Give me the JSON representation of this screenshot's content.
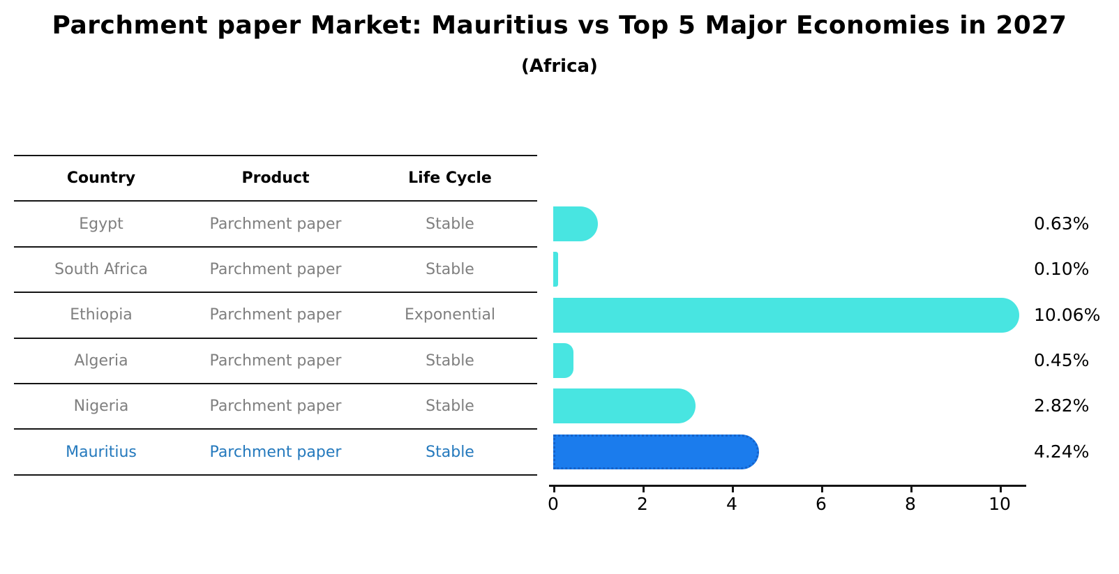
{
  "title": "Parchment paper Market: Mauritius vs Top 5 Major Economies in 2027",
  "subtitle": "(Africa)",
  "table": {
    "headers": [
      "Country",
      "Product",
      "Life Cycle"
    ],
    "rows": [
      {
        "country": "Egypt",
        "product": "Parchment paper",
        "life_cycle": "Stable",
        "highlight": false
      },
      {
        "country": "South Africa",
        "product": "Parchment paper",
        "life_cycle": "Stable",
        "highlight": false
      },
      {
        "country": "Ethiopia",
        "product": "Parchment paper",
        "life_cycle": "Exponential",
        "highlight": false
      },
      {
        "country": "Algeria",
        "product": "Parchment paper",
        "life_cycle": "Stable",
        "highlight": false
      },
      {
        "country": "Nigeria",
        "product": "Parchment paper",
        "life_cycle": "Stable",
        "highlight": false
      },
      {
        "country": "Mauritius",
        "product": "Parchment paper",
        "life_cycle": "Stable",
        "highlight": true
      }
    ]
  },
  "chart_data": {
    "type": "bar",
    "orientation": "horizontal",
    "title": "Parchment paper Market: Mauritius vs Top 5 Major Economies in 2027 (Africa)",
    "categories": [
      "Egypt",
      "South Africa",
      "Ethiopia",
      "Algeria",
      "Nigeria",
      "Mauritius"
    ],
    "values": [
      0.63,
      0.1,
      10.06,
      0.45,
      2.82,
      4.24
    ],
    "value_labels": [
      "0.63%",
      "0.10%",
      "10.06%",
      "0.45%",
      "2.82%",
      "4.24%"
    ],
    "unit": "%",
    "x_ticks": [
      0,
      2,
      4,
      6,
      8,
      10
    ],
    "xlim": [
      0,
      10.6
    ],
    "grid": false,
    "legend": false,
    "highlight_index": 5,
    "bar_color": "#48e5e1",
    "highlight_color": "#1b7ced",
    "highlight_text_color": "#2479bd",
    "text_color_muted": "#7f7f7f"
  }
}
